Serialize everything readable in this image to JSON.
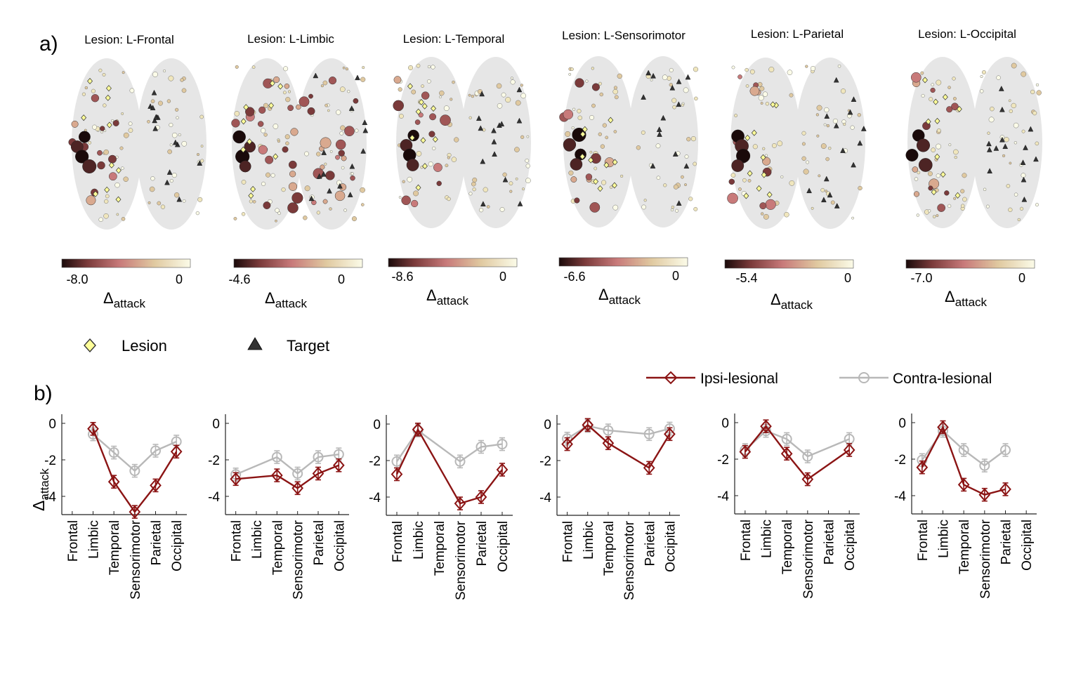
{
  "figure": {
    "label_a": "a)",
    "label_b": "b)",
    "colors": {
      "ipsi": "#8b1414",
      "contra": "#b8b8b8",
      "lesion_marker_fill": "#ffff99",
      "target_marker_fill": "#333333",
      "brain": "#e6e6e6",
      "cmap": [
        "#1a0a0a",
        "#7a3a3a",
        "#c87a7a",
        "#e0c9a0",
        "#fbfbe8"
      ]
    }
  },
  "panel_a": {
    "legend": {
      "lesion_label": "Lesion",
      "target_label": "Target",
      "lesion_icon": "diamond-icon",
      "target_icon": "triangle-icon"
    },
    "colorbar_label_main": "Δ",
    "colorbar_label_sub": "attack",
    "brains": [
      {
        "title": "Lesion: L-Frontal",
        "cbar_min": "-8.0",
        "cbar_max": "0"
      },
      {
        "title": "Lesion: L-Limbic",
        "cbar_min": "-4.6",
        "cbar_max": "0"
      },
      {
        "title": "Lesion: L-Temporal",
        "cbar_min": "-8.6",
        "cbar_max": "0"
      },
      {
        "title": "Lesion: L-Sensorimotor",
        "cbar_min": "-6.6",
        "cbar_max": "0"
      },
      {
        "title": "Lesion: L-Parietal",
        "cbar_min": "-5.4",
        "cbar_max": "0"
      },
      {
        "title": "Lesion: L-Occipital",
        "cbar_min": "-7.0",
        "cbar_max": "0"
      }
    ]
  },
  "chart_data": {
    "type": "line",
    "ylabel_main": "Δ",
    "ylabel_sub": "attack",
    "ylim": [
      -5,
      0.5
    ],
    "yticks": [
      0,
      -2,
      -4
    ],
    "ytick_labels": [
      "0",
      "-2",
      "-4"
    ],
    "categories": [
      "Frontal",
      "Limbic",
      "Temporal",
      "Sensorimotor",
      "Parietal",
      "Occipital"
    ],
    "legend": {
      "ipsi": "Ipsi-lesional",
      "contra": "Contra-lesional"
    },
    "panels": [
      {
        "lesion": "L-Frontal",
        "series": [
          {
            "name": "Ipsi-lesional",
            "values": [
              null,
              -0.3,
              -3.2,
              -4.85,
              -3.4,
              -1.55
            ]
          },
          {
            "name": "Contra-lesional",
            "values": [
              null,
              -0.6,
              -1.6,
              -2.6,
              -1.5,
              -1.0
            ]
          }
        ]
      },
      {
        "lesion": "L-Limbic",
        "series": [
          {
            "name": "Ipsi-lesional",
            "values": [
              -3.05,
              null,
              -2.85,
              -3.55,
              -2.75,
              -2.3
            ]
          },
          {
            "name": "Contra-lesional",
            "values": [
              -2.8,
              null,
              -1.85,
              -2.75,
              -1.85,
              -1.7
            ]
          }
        ]
      },
      {
        "lesion": "L-Temporal",
        "series": [
          {
            "name": "Ipsi-lesional",
            "values": [
              -2.75,
              -0.3,
              null,
              -4.35,
              -4.0,
              -2.5
            ]
          },
          {
            "name": "Contra-lesional",
            "values": [
              -2.05,
              -0.35,
              null,
              -2.05,
              -1.25,
              -1.1
            ]
          }
        ]
      },
      {
        "lesion": "L-Sensorimotor",
        "series": [
          {
            "name": "Ipsi-lesional",
            "values": [
              -1.1,
              -0.05,
              -1.05,
              null,
              -2.4,
              -0.55
            ]
          },
          {
            "name": "Contra-lesional",
            "values": [
              -0.8,
              -0.1,
              -0.35,
              null,
              -0.55,
              -0.25
            ]
          }
        ]
      },
      {
        "lesion": "L-Parietal",
        "series": [
          {
            "name": "Ipsi-lesional",
            "values": [
              -1.6,
              -0.2,
              -1.7,
              -3.1,
              null,
              -1.5
            ]
          },
          {
            "name": "Contra-lesional",
            "values": [
              -1.5,
              -0.45,
              -0.9,
              -1.85,
              null,
              -0.9
            ]
          }
        ]
      },
      {
        "lesion": "L-Occipital",
        "series": [
          {
            "name": "Ipsi-lesional",
            "values": [
              -2.45,
              -0.25,
              -3.4,
              -3.95,
              -3.65,
              null
            ]
          },
          {
            "name": "Contra-lesional",
            "values": [
              -2.05,
              -0.45,
              -1.5,
              -2.35,
              -1.5,
              null
            ]
          }
        ]
      }
    ]
  }
}
